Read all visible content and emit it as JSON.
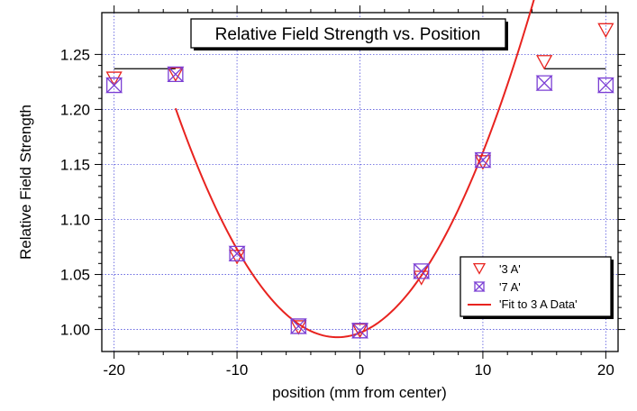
{
  "chart_data": {
    "type": "scatter",
    "title": "Relative Field Strength vs. Position",
    "xlabel": "position (mm from center)",
    "ylabel": "Relative Field Strength",
    "xlim": [
      -21,
      21
    ],
    "ylim": [
      0.98,
      1.288
    ],
    "x_ticks": [
      -20,
      -10,
      0,
      10,
      20
    ],
    "x_tick_labels": [
      "-20",
      "-10",
      "0",
      "10",
      "20"
    ],
    "y_ticks": [
      1.0,
      1.05,
      1.1,
      1.15,
      1.2,
      1.25
    ],
    "y_tick_labels": [
      "1.00",
      "1.05",
      "1.10",
      "1.15",
      "1.20",
      "1.25"
    ],
    "grid": true,
    "legend_position": "bottom-right",
    "series": [
      {
        "name": "'3 A'",
        "marker": "triangle-down",
        "color": "#e8231f",
        "x": [
          -20,
          -15,
          -10,
          -5,
          0,
          5,
          10,
          15,
          20
        ],
        "y": [
          1.228,
          1.232,
          1.066,
          1.002,
          0.999,
          1.047,
          1.152,
          1.243,
          1.272
        ]
      },
      {
        "name": "'7 A'",
        "marker": "bowtie",
        "color": "#7b3fd4",
        "x": [
          -20,
          -15,
          -10,
          -5,
          0,
          5,
          10,
          15,
          20
        ],
        "y": [
          1.222,
          1.232,
          1.069,
          1.003,
          0.999,
          1.053,
          1.154,
          1.224,
          1.222
        ]
      },
      {
        "name": "'Fit to 3 A Data'",
        "type": "line",
        "color": "#e8231f",
        "fit": {
          "form": "quadratic",
          "a": 0.0012,
          "b": 0.0044,
          "c": 0.997,
          "x_range": [
            -15,
            15
          ]
        }
      }
    ],
    "reference_lines": [
      {
        "x": [
          -20,
          -15
        ],
        "y": 1.237,
        "color": "#000000"
      },
      {
        "x": [
          15,
          20
        ],
        "y": 1.237,
        "color": "#000000"
      }
    ]
  }
}
